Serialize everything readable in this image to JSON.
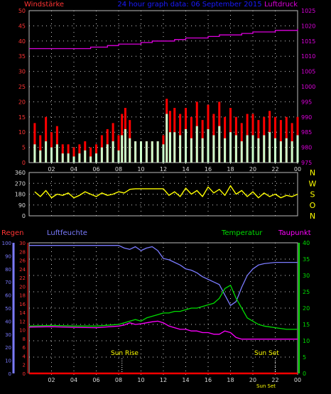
{
  "header": {
    "left_title": "Windstärke",
    "center_title": "24 hour graph data: 06 September 2015",
    "right_title": "Luftdruck"
  },
  "lower_header": {
    "regen": "Regen",
    "luftfeuchte": "Luftfeuchte",
    "temperatur": "Temperatur",
    "taupunkt": "Taupunkt"
  },
  "colors": {
    "background": "#000000",
    "frame": "#bbbbbb",
    "grid": "#d0d0d0",
    "wind_gust": "#ff0000",
    "wind_avg": "#ccffcc",
    "pressure": "#dd00dd",
    "wind_dir": "#ffff00",
    "humidity": "#7b7bff",
    "temperature": "#00dd00",
    "dewpoint": "#ff00ff",
    "rain": "#ff0000",
    "left_axis_red": "#ff3333",
    "right_axis_pressure": "#dd00dd",
    "humidity_axis": "#7b7bff",
    "temp_axis": "#00dd00",
    "title_blue": "#1a1aff",
    "sun_label": "#ffff00",
    "direction_letters": "#ffff00"
  },
  "annotations": {
    "sun_rise": "Sun Rise",
    "sun_set": "Sun Set",
    "sun_set_small": "Sun Set"
  },
  "chart_data": [
    {
      "type": "line",
      "name": "wind_pressure",
      "x_ticks": [
        "02",
        "04",
        "06",
        "08",
        "10",
        "12",
        "14",
        "16",
        "18",
        "20",
        "22",
        "00"
      ],
      "ylim_left": [
        0,
        50
      ],
      "yticks_left": [
        0,
        5,
        10,
        15,
        20,
        25,
        30,
        35,
        40,
        45,
        50
      ],
      "ylim_right": [
        975,
        1025
      ],
      "yticks_right": [
        975,
        980,
        985,
        990,
        995,
        1000,
        1005,
        1010,
        1015,
        1020,
        1025
      ],
      "grid": true,
      "series": [
        {
          "name": "Windstärke",
          "role": "gust",
          "x": [
            0.5,
            1,
            1.5,
            2,
            2.5,
            3,
            3.5,
            4,
            4.5,
            5,
            5.5,
            6,
            6.5,
            7,
            7.5,
            8,
            8.3,
            8.6,
            9,
            9.5,
            10,
            10.5,
            11,
            11.5,
            12,
            12.3,
            12.6,
            13,
            13.5,
            14,
            14.5,
            15,
            15.5,
            16,
            16.5,
            17,
            17.5,
            18,
            18.5,
            19,
            19.5,
            20,
            20.5,
            21,
            21.5,
            22,
            22.5,
            23,
            23.5,
            24
          ],
          "values": [
            13,
            9,
            15,
            10,
            12,
            6,
            6,
            5,
            6,
            7,
            5,
            6,
            9,
            11,
            13,
            9,
            16,
            18,
            14,
            7,
            7,
            7,
            7,
            7,
            9,
            21,
            17,
            18,
            16,
            18,
            15,
            20,
            14,
            19,
            16,
            20,
            15,
            18,
            15,
            13,
            16,
            16,
            14,
            15,
            17,
            15,
            14,
            15,
            13,
            15
          ]
        },
        {
          "name": "",
          "role": "average",
          "x": [
            0.5,
            1,
            1.5,
            2,
            2.5,
            3,
            3.5,
            4,
            4.5,
            5,
            5.5,
            6,
            6.5,
            7,
            7.5,
            8,
            8.3,
            8.6,
            9,
            9.5,
            10,
            10.5,
            11,
            11.5,
            12,
            12.3,
            12.6,
            13,
            13.5,
            14,
            14.5,
            15,
            15.5,
            16,
            16.5,
            17,
            17.5,
            18,
            18.5,
            19,
            19.5,
            20,
            20.5,
            21,
            21.5,
            22,
            22.5,
            23,
            23.5,
            24
          ],
          "values": [
            6,
            4,
            7,
            5,
            6,
            3,
            3,
            2,
            3,
            4,
            2,
            3,
            5,
            6,
            7,
            4,
            9,
            11,
            8,
            7,
            7,
            7,
            7,
            7,
            6,
            16,
            10,
            10,
            9,
            11,
            8,
            12,
            8,
            11,
            9,
            12,
            8,
            10,
            9,
            7,
            9,
            9,
            8,
            9,
            10,
            8,
            7,
            8,
            7,
            9
          ]
        },
        {
          "name": "Luftdruck",
          "role": "pressure",
          "x": [
            0,
            5,
            5.5,
            6,
            7,
            8,
            9,
            10,
            11,
            12,
            13,
            14,
            15,
            16,
            17,
            18,
            19,
            20,
            21,
            22,
            23,
            24
          ],
          "values": [
            1012.5,
            1012.5,
            1013,
            1013,
            1013.5,
            1014,
            1014,
            1014.5,
            1015,
            1015,
            1015.5,
            1016,
            1016,
            1016.5,
            1017,
            1017,
            1017.5,
            1018,
            1018,
            1018.5,
            1018.5,
            1019
          ]
        }
      ]
    },
    {
      "type": "line",
      "name": "wind_direction",
      "x_ticks": [],
      "ylim": [
        0,
        360
      ],
      "yticks": [
        0,
        90,
        180,
        270,
        360
      ],
      "direction_labels": [
        "N",
        "W",
        "S",
        "O",
        "N"
      ],
      "grid": true,
      "series": [
        {
          "name": "",
          "x": [
            0.5,
            1,
            1.5,
            2,
            2.5,
            3,
            3.5,
            4,
            4.5,
            5,
            5.5,
            6,
            6.5,
            7,
            7.5,
            8,
            8.5,
            9,
            9.5,
            10,
            10.5,
            11,
            11.5,
            12,
            12.5,
            13,
            13.5,
            14,
            14.5,
            15,
            15.5,
            16,
            16.5,
            17,
            17.5,
            18,
            18.5,
            19,
            19.5,
            20,
            20.5,
            21,
            21.5,
            22,
            22.5,
            23,
            23.5,
            24
          ],
          "values": [
            200,
            160,
            210,
            150,
            180,
            170,
            190,
            150,
            170,
            200,
            180,
            160,
            190,
            170,
            180,
            200,
            190,
            220,
            225,
            225,
            225,
            225,
            225,
            225,
            170,
            200,
            160,
            230,
            180,
            210,
            160,
            240,
            190,
            220,
            170,
            250,
            180,
            210,
            160,
            200,
            150,
            190,
            160,
            180,
            150,
            170,
            160,
            180
          ]
        }
      ]
    },
    {
      "type": "line",
      "name": "humidity_temp_rain",
      "x_ticks": [
        "02",
        "04",
        "06",
        "08",
        "10",
        "12",
        "14",
        "16",
        "18",
        "20",
        "22",
        "00"
      ],
      "ylim_rain": [
        0,
        30
      ],
      "yticks_rain": [
        0,
        2,
        4,
        6,
        8,
        10,
        12,
        14,
        16,
        18,
        20,
        22,
        24,
        26,
        28,
        30
      ],
      "ylim_humidity": [
        0,
        100
      ],
      "yticks_humidity": [
        0,
        10,
        20,
        30,
        40,
        50,
        60,
        70,
        80,
        90,
        100
      ],
      "ylim_temp": [
        0,
        40
      ],
      "yticks_temp": [
        0,
        5,
        10,
        15,
        20,
        25,
        30,
        35,
        40
      ],
      "grid": true,
      "series": [
        {
          "name": "Luftfeuchte",
          "x": [
            0,
            2,
            4,
            6,
            8,
            8.5,
            9,
            9.5,
            10,
            10.5,
            11,
            11.5,
            12,
            12.5,
            13,
            13.5,
            14,
            14.5,
            15,
            15.5,
            16,
            16.5,
            17,
            17.5,
            18,
            18.5,
            19,
            19.5,
            20,
            20.5,
            21,
            22,
            23,
            24
          ],
          "values": [
            98,
            98,
            98,
            98,
            98,
            96,
            95,
            97,
            94,
            96,
            97,
            94,
            88,
            87,
            85,
            83,
            80,
            79,
            77,
            74,
            72,
            70,
            68,
            60,
            52,
            55,
            66,
            75,
            80,
            83,
            84,
            85,
            85,
            85
          ]
        },
        {
          "name": "Temperatur",
          "x": [
            0,
            2,
            4,
            6,
            8,
            8.5,
            9,
            9.5,
            10,
            10.5,
            11,
            11.5,
            12,
            12.5,
            13,
            13.5,
            14,
            14.5,
            15,
            15.5,
            16,
            16.5,
            17,
            17.5,
            18,
            18.5,
            19,
            19.5,
            20,
            20.5,
            21,
            22,
            23,
            24
          ],
          "values": [
            14.5,
            14.7,
            14.5,
            14.5,
            15,
            15.5,
            16,
            16.5,
            16,
            17,
            17.5,
            18,
            18.5,
            18.5,
            19,
            19,
            19.5,
            20,
            20,
            20.5,
            21,
            21.5,
            23,
            26,
            27,
            23,
            20,
            17,
            16,
            15,
            14.5,
            14,
            13.5,
            13.5
          ]
        },
        {
          "name": "Taupunkt",
          "x": [
            0,
            2,
            4,
            6,
            8,
            8.5,
            9,
            9.5,
            10,
            10.5,
            11,
            11.5,
            12,
            12.5,
            13,
            13.5,
            14,
            14.5,
            15,
            15.5,
            16,
            16.5,
            17,
            17.5,
            18,
            18.5,
            19,
            19.5,
            20,
            20.5,
            21,
            22,
            23,
            24
          ],
          "values": [
            14.2,
            14.3,
            14.1,
            14,
            14.5,
            14.8,
            15.5,
            15,
            15.2,
            15.5,
            15.8,
            16,
            15.5,
            14.5,
            14,
            13.5,
            13.5,
            13,
            13,
            12.5,
            12.5,
            12,
            12,
            13,
            12.5,
            11,
            10.5,
            10.5,
            10.5,
            10.5,
            10.5,
            10.5,
            10.5,
            10.5
          ]
        },
        {
          "name": "Regen",
          "x": [
            0,
            24
          ],
          "values": [
            0,
            0
          ]
        }
      ]
    }
  ]
}
